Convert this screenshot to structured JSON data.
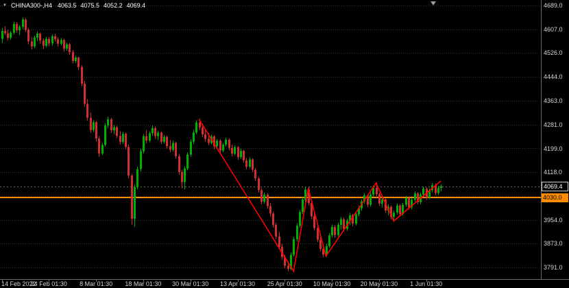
{
  "header": {
    "dropdown_icon": "▼",
    "symbol_period": "CHINA300-,H4",
    "open": "4063.5",
    "high": "4075.5",
    "low": "4052.2",
    "close": "4069.4"
  },
  "colors": {
    "bg": "#000000",
    "bull": "#00b000",
    "bear": "#d03030",
    "grid": "#363636",
    "trendline": "#ff0000",
    "hline": "#ff8c00",
    "axis_text": "#d6d6d6",
    "sep": "#6e6e6e",
    "tag_border": "#cdcdcd",
    "bid_line": "#6a6a6a",
    "header_text": "#ffffff",
    "shift": "#9a9a9a"
  },
  "chart_data": {
    "type": "candlestick",
    "title": "CHINA300-,H4",
    "symbol": "CHINA300-",
    "timeframe": "H4",
    "ylim": [
      3751,
      4708
    ],
    "y_ticks": [
      {
        "label": "4689.0",
        "price": 4689
      },
      {
        "label": "4607.0",
        "price": 4607
      },
      {
        "label": "4526.0",
        "price": 4526
      },
      {
        "label": "4444.0",
        "price": 4444
      },
      {
        "label": "4363.0",
        "price": 4363
      },
      {
        "label": "4281.0",
        "price": 4281
      },
      {
        "label": "4199.0",
        "price": 4199
      },
      {
        "label": "4118.0",
        "price": 4118
      },
      {
        "label": "4036.0",
        "price": 4036
      },
      {
        "label": "3954.0",
        "price": 3954
      },
      {
        "label": "3873.0",
        "price": 3873
      },
      {
        "label": "3791.0",
        "price": 3791
      }
    ],
    "x_ticks": [
      {
        "label": "14 Feb 2022",
        "i": 0
      },
      {
        "label": "24 Feb 01:30",
        "i": 16
      },
      {
        "label": "8 Mar 01:30",
        "i": 32
      },
      {
        "label": "18 Mar 01:30",
        "i": 48
      },
      {
        "label": "30 Mar 01:30",
        "i": 64
      },
      {
        "label": "13 Apr 01:30",
        "i": 80
      },
      {
        "label": "25 Apr 01:30",
        "i": 96
      },
      {
        "label": "10 May 01:30",
        "i": 112
      },
      {
        "label": "20 May 01:30",
        "i": 128
      },
      {
        "label": "1 Jun 01:30",
        "i": 144
      }
    ],
    "overlays": {
      "horizontal_line": {
        "price": 4030.0,
        "label": "4030.0",
        "color": "#ff8c00"
      },
      "current_price": {
        "value": 4069.4,
        "label": "4069.4"
      },
      "trendline": {
        "color": "#ff0000",
        "points": [
          {
            "i": 67,
            "price": 4298
          },
          {
            "i": 99,
            "price": 3778
          },
          {
            "i": 104,
            "price": 4062
          },
          {
            "i": 110,
            "price": 3830
          },
          {
            "i": 127,
            "price": 4080
          },
          {
            "i": 133,
            "price": 3950
          },
          {
            "i": 149,
            "price": 4088
          }
        ]
      }
    },
    "shift_marker_i": 146.5,
    "candles": [
      [
        4575,
        4612,
        4560,
        4602
      ],
      [
        4602,
        4618,
        4588,
        4594
      ],
      [
        4594,
        4606,
        4570,
        4578
      ],
      [
        4578,
        4601,
        4572,
        4596
      ],
      [
        4596,
        4634,
        4590,
        4626
      ],
      [
        4626,
        4632,
        4596,
        4604
      ],
      [
        4604,
        4622,
        4588,
        4616
      ],
      [
        4616,
        4649,
        4608,
        4641
      ],
      [
        4641,
        4645,
        4598,
        4606
      ],
      [
        4606,
        4612,
        4556,
        4566
      ],
      [
        4566,
        4580,
        4538,
        4549
      ],
      [
        4549,
        4586,
        4543,
        4579
      ],
      [
        4579,
        4600,
        4566,
        4593
      ],
      [
        4593,
        4597,
        4558,
        4569
      ],
      [
        4569,
        4576,
        4540,
        4551
      ],
      [
        4551,
        4581,
        4546,
        4574
      ],
      [
        4574,
        4580,
        4550,
        4559
      ],
      [
        4559,
        4590,
        4552,
        4584
      ],
      [
        4584,
        4592,
        4566,
        4573
      ],
      [
        4573,
        4580,
        4549,
        4558
      ],
      [
        4558,
        4578,
        4552,
        4571
      ],
      [
        4571,
        4575,
        4532,
        4541
      ],
      [
        4541,
        4562,
        4534,
        4556
      ],
      [
        4556,
        4560,
        4520,
        4529
      ],
      [
        4529,
        4536,
        4490,
        4499
      ],
      [
        4499,
        4517,
        4492,
        4511
      ],
      [
        4511,
        4514,
        4468,
        4478
      ],
      [
        4478,
        4484,
        4412,
        4421
      ],
      [
        4421,
        4430,
        4342,
        4352
      ],
      [
        4352,
        4368,
        4295,
        4304
      ],
      [
        4304,
        4322,
        4252,
        4262
      ],
      [
        4262,
        4296,
        4255,
        4289
      ],
      [
        4289,
        4293,
        4222,
        4233
      ],
      [
        4233,
        4241,
        4170,
        4182
      ],
      [
        4182,
        4218,
        4176,
        4211
      ],
      [
        4211,
        4286,
        4205,
        4278
      ],
      [
        4278,
        4308,
        4270,
        4299
      ],
      [
        4299,
        4304,
        4252,
        4261
      ],
      [
        4261,
        4280,
        4248,
        4272
      ],
      [
        4272,
        4277,
        4234,
        4242
      ],
      [
        4242,
        4258,
        4212,
        4221
      ],
      [
        4221,
        4256,
        4215,
        4249
      ],
      [
        4249,
        4254,
        4196,
        4204
      ],
      [
        4204,
        4212,
        4096,
        4106
      ],
      [
        4106,
        4112,
        3938,
        3958
      ],
      [
        3958,
        4075,
        3931,
        4066
      ],
      [
        4066,
        4136,
        4058,
        4128
      ],
      [
        4128,
        4198,
        4120,
        4189
      ],
      [
        4189,
        4248,
        4182,
        4241
      ],
      [
        4241,
        4262,
        4216,
        4226
      ],
      [
        4226,
        4258,
        4220,
        4251
      ],
      [
        4251,
        4278,
        4242,
        4269
      ],
      [
        4269,
        4274,
        4232,
        4241
      ],
      [
        4241,
        4260,
        4228,
        4253
      ],
      [
        4253,
        4257,
        4214,
        4222
      ],
      [
        4222,
        4246,
        4216,
        4239
      ],
      [
        4239,
        4243,
        4198,
        4207
      ],
      [
        4207,
        4228,
        4186,
        4194
      ],
      [
        4194,
        4226,
        4188,
        4218
      ],
      [
        4218,
        4222,
        4164,
        4172
      ],
      [
        4172,
        4180,
        4108,
        4118
      ],
      [
        4118,
        4126,
        4062,
        4084
      ],
      [
        4084,
        4138,
        4058,
        4130
      ],
      [
        4130,
        4186,
        4124,
        4178
      ],
      [
        4178,
        4230,
        4170,
        4222
      ],
      [
        4222,
        4262,
        4214,
        4254
      ],
      [
        4254,
        4296,
        4248,
        4288
      ],
      [
        4288,
        4302,
        4262,
        4271
      ],
      [
        4271,
        4284,
        4238,
        4247
      ],
      [
        4247,
        4266,
        4222,
        4232
      ],
      [
        4232,
        4252,
        4210,
        4218
      ],
      [
        4218,
        4246,
        4212,
        4240
      ],
      [
        4240,
        4244,
        4196,
        4206
      ],
      [
        4206,
        4232,
        4200,
        4226
      ],
      [
        4226,
        4230,
        4182,
        4192
      ],
      [
        4192,
        4218,
        4186,
        4212
      ],
      [
        4212,
        4236,
        4206,
        4229
      ],
      [
        4229,
        4233,
        4192,
        4201
      ],
      [
        4201,
        4212,
        4172,
        4181
      ],
      [
        4181,
        4210,
        4176,
        4203
      ],
      [
        4203,
        4207,
        4160,
        4169
      ],
      [
        4169,
        4198,
        4163,
        4191
      ],
      [
        4191,
        4195,
        4150,
        4158
      ],
      [
        4158,
        4166,
        4128,
        4136
      ],
      [
        4136,
        4168,
        4130,
        4161
      ],
      [
        4161,
        4165,
        4118,
        4126
      ],
      [
        4126,
        4132,
        4088,
        4096
      ],
      [
        4096,
        4102,
        4048,
        4056
      ],
      [
        4056,
        4062,
        4008,
        4016
      ],
      [
        4016,
        4048,
        4010,
        4041
      ],
      [
        4041,
        4045,
        3992,
        4001
      ],
      [
        4001,
        4012,
        3966,
        3976
      ],
      [
        3976,
        3982,
        3928,
        3937
      ],
      [
        3937,
        3944,
        3888,
        3897
      ],
      [
        3897,
        3912,
        3852,
        3861
      ],
      [
        3861,
        3872,
        3818,
        3827
      ],
      [
        3827,
        3834,
        3788,
        3797
      ],
      [
        3797,
        3812,
        3778,
        3786
      ],
      [
        3786,
        3842,
        3781,
        3834
      ],
      [
        3834,
        3896,
        3828,
        3888
      ],
      [
        3888,
        3942,
        3880,
        3934
      ],
      [
        3934,
        3988,
        3928,
        3981
      ],
      [
        3981,
        4032,
        3974,
        4024
      ],
      [
        4024,
        4068,
        4016,
        4058
      ],
      [
        4058,
        4066,
        4004,
        4012
      ],
      [
        4012,
        4018,
        3958,
        3966
      ],
      [
        3966,
        3978,
        3918,
        3926
      ],
      [
        3926,
        3934,
        3878,
        3886
      ],
      [
        3886,
        3895,
        3846,
        3854
      ],
      [
        3854,
        3866,
        3826,
        3835
      ],
      [
        3835,
        3872,
        3828,
        3864
      ],
      [
        3864,
        3908,
        3858,
        3901
      ],
      [
        3901,
        3938,
        3894,
        3930
      ],
      [
        3930,
        3936,
        3892,
        3902
      ],
      [
        3902,
        3944,
        3896,
        3937
      ],
      [
        3937,
        3964,
        3920,
        3956
      ],
      [
        3956,
        3961,
        3914,
        3923
      ],
      [
        3923,
        3958,
        3916,
        3951
      ],
      [
        3951,
        3978,
        3936,
        3970
      ],
      [
        3970,
        3975,
        3932,
        3941
      ],
      [
        3941,
        3980,
        3935,
        3973
      ],
      [
        3973,
        4002,
        3966,
        3994
      ],
      [
        3994,
        4024,
        3986,
        4017
      ],
      [
        4017,
        4046,
        4010,
        4038
      ],
      [
        4038,
        4042,
        3998,
        4006
      ],
      [
        4006,
        4048,
        4000,
        4041
      ],
      [
        4041,
        4072,
        4034,
        4064
      ],
      [
        4064,
        4082,
        4030,
        4042
      ],
      [
        4042,
        4048,
        4002,
        4010
      ],
      [
        4010,
        4032,
        3996,
        4024
      ],
      [
        4024,
        4028,
        3978,
        3986
      ],
      [
        3986,
        4008,
        3970,
        3999
      ],
      [
        3999,
        4003,
        3956,
        3964
      ],
      [
        3964,
        3986,
        3948,
        3979
      ],
      [
        3979,
        4010,
        3972,
        4003
      ],
      [
        4003,
        4008,
        3966,
        3974
      ],
      [
        3974,
        4012,
        3968,
        4006
      ],
      [
        4006,
        4036,
        3999,
        4029
      ],
      [
        4029,
        4034,
        3989,
        3997
      ],
      [
        3997,
        4030,
        3990,
        4023
      ],
      [
        4023,
        4052,
        4016,
        4045
      ],
      [
        4045,
        4049,
        4007,
        4015
      ],
      [
        4015,
        4048,
        4008,
        4041
      ],
      [
        4041,
        4068,
        4034,
        4061
      ],
      [
        4061,
        4066,
        4022,
        4030
      ],
      [
        4030,
        4062,
        4024,
        4056
      ],
      [
        4056,
        4080,
        4048,
        4073
      ],
      [
        4073,
        4078,
        4038,
        4046
      ],
      [
        4046,
        4070,
        4039,
        4063.5
      ],
      [
        4063.5,
        4075.5,
        4052.2,
        4069.4
      ]
    ]
  }
}
